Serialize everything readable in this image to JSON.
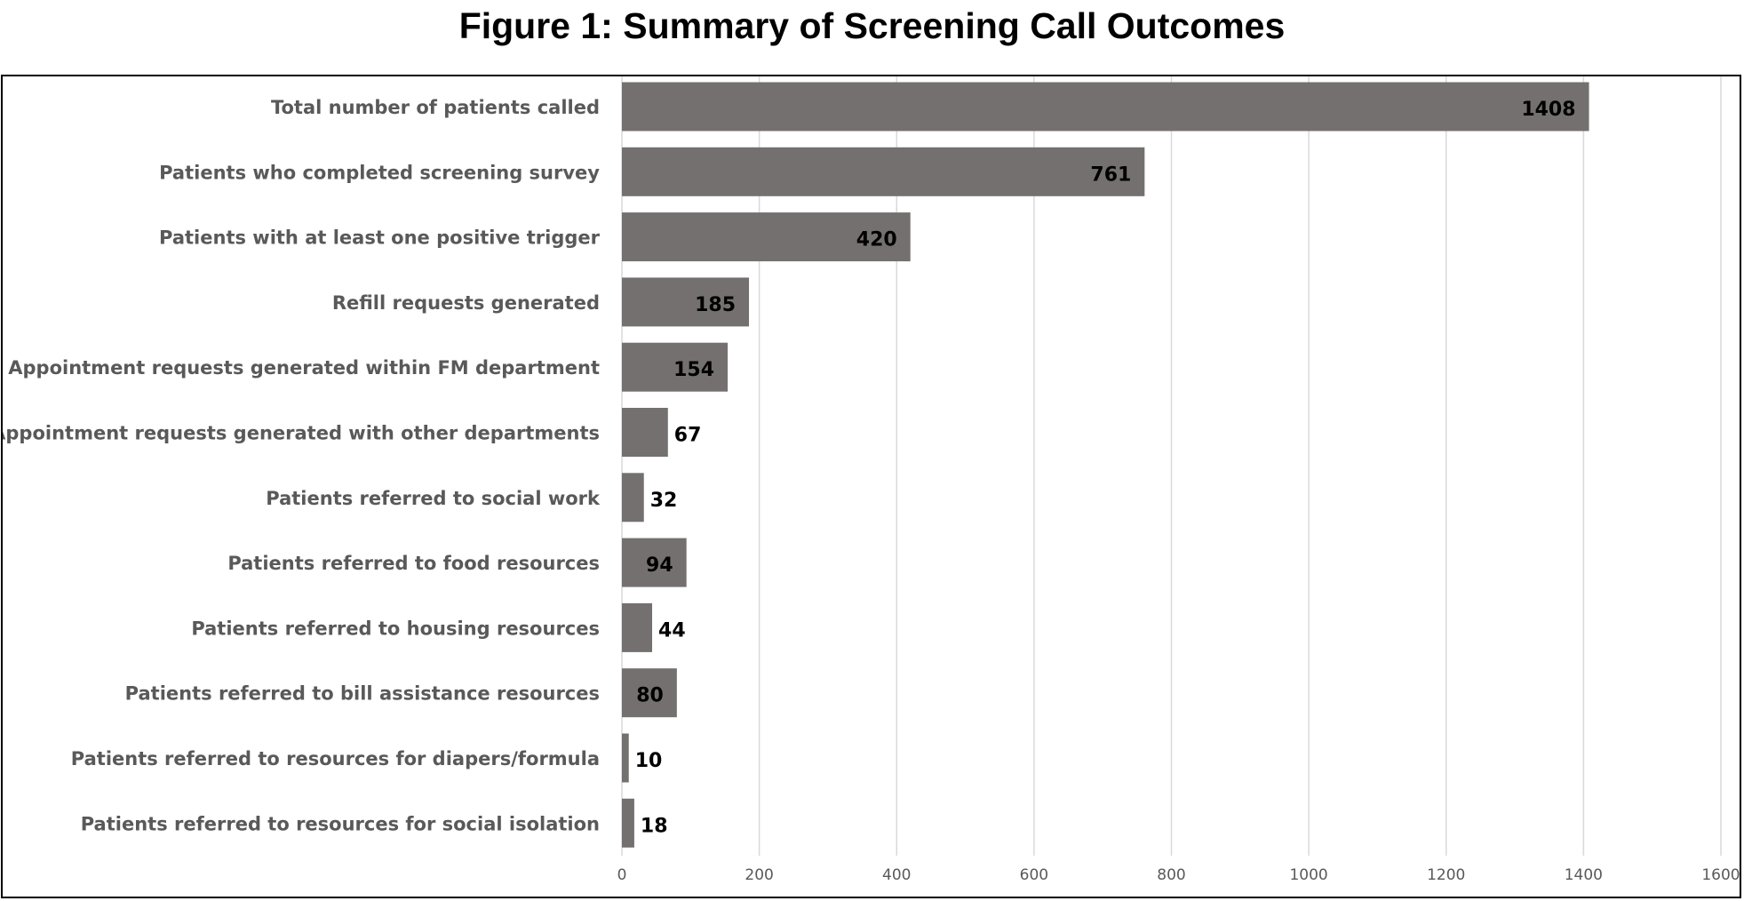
{
  "chart_data": {
    "type": "bar",
    "orientation": "horizontal",
    "title": "Figure 1: Summary of Screening Call Outcomes",
    "xlabel": "",
    "ylabel": "",
    "xlim": [
      0,
      1600
    ],
    "xticks": [
      0,
      200,
      400,
      600,
      800,
      1000,
      1200,
      1400,
      1600
    ],
    "grid": true,
    "bar_color": "#757070",
    "categories": [
      "Total number of patients called",
      "Patients who completed screening survey",
      "Patients with at least one positive trigger",
      "Refill requests generated",
      "Appointment requests generated within FM department",
      "Appointment requests generated with other departments",
      "Patients referred to social work",
      "Patients referred to food resources",
      "Patients referred to housing resources",
      "Patients referred to bill assistance resources",
      "Patients referred to resources for diapers/formula",
      "Patients referred to resources for social isolation"
    ],
    "values": [
      1408,
      761,
      420,
      185,
      154,
      67,
      32,
      94,
      44,
      80,
      10,
      18
    ]
  }
}
